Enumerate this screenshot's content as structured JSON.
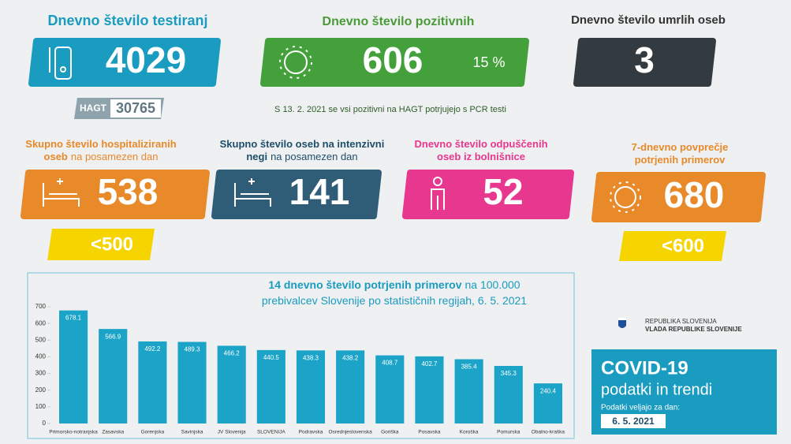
{
  "tests": {
    "title": "Dnevno število testiranj",
    "value": 4029,
    "hagt_label": "HAGT",
    "hagt_value": 30765
  },
  "positive": {
    "title": "Dnevno število pozitivnih",
    "value": 606,
    "share": "15 %"
  },
  "deaths": {
    "title": "Dnevno število umrlih oseb",
    "value": 3
  },
  "note": "S 13. 2. 2021 se vsi pozitivni na HAGT potrjujejo s PCR testi",
  "hospitalized": {
    "title": [
      "Skupno število hospitaliziranih",
      "oseb"
    ],
    "subtitle": "na posamezen dan",
    "value": 538,
    "target": "<500"
  },
  "icu": {
    "title": [
      "Skupno število oseb na intenzivni",
      "negi"
    ],
    "subtitle": "na posamezen dan",
    "value": 141
  },
  "discharged": {
    "title": [
      "Dnevno število odpuščenih",
      "oseb iz bolnišnice"
    ],
    "value": 52
  },
  "weekly_average": {
    "title": [
      "7-dnevno povprečje",
      "potrjenih primerov"
    ],
    "value": 680,
    "target": "<600"
  },
  "logo": [
    "REPUBLIKA SLOVENIJA",
    "VLADA REPUBLIKE SLOVENIJE"
  ],
  "badge": {
    "title": "COVID-19",
    "subtitle": "podatki in trendi",
    "date_label": "Podatki veljajo za dan:",
    "date": "6. 5. 2021"
  },
  "chart_data": {
    "type": "bar",
    "title": "14 dnevno število potrjenih primerov",
    "title_rest": [
      "na 100.000",
      "prebivalcev Slovenije po statističnih regijah, 6. 5. 2021"
    ],
    "categories": [
      "Primorsko-notranjska",
      "Zasavska",
      "Gorenjska",
      "Savinjska",
      "JV Slovenija",
      "SLOVENIJA",
      "Podravska",
      "Osrednjeslovenska",
      "Goriška",
      "Posavska",
      "Koroška",
      "Pomurska",
      "Obalno-kraška"
    ],
    "values": [
      678.1,
      566.9,
      492.2,
      489.3,
      466.2,
      440.5,
      438.3,
      438.2,
      408.7,
      402.7,
      385.4,
      345.3,
      240.4
    ],
    "color": "#1ba3c8",
    "ylim": [
      0,
      700
    ],
    "yticks": [
      0,
      100,
      200,
      300,
      400,
      500,
      600,
      700
    ]
  }
}
